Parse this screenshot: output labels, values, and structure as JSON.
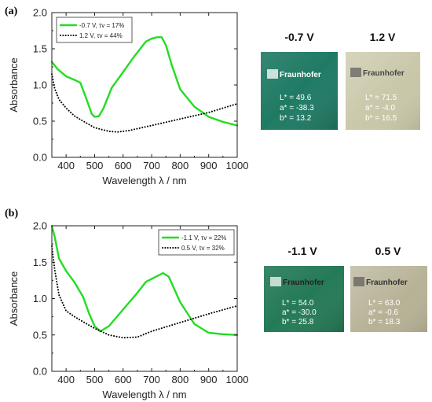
{
  "chart_data": [
    {
      "panel": "(a)",
      "type": "line",
      "xlabel": "Wavelength λ / nm",
      "ylabel": "Absorbance",
      "xlim": [
        350,
        1000
      ],
      "ylim": [
        0,
        2.0
      ],
      "xticks": [
        400,
        500,
        600,
        700,
        800,
        900,
        1000
      ],
      "yticks": [
        0.0,
        0.5,
        1.0,
        1.5,
        2.0
      ],
      "grid": false,
      "legend_position": "top-left",
      "series": [
        {
          "name": "-0.7 V, τv = 17%",
          "color": "#22dd22",
          "style": "solid",
          "x": [
            350,
            370,
            400,
            430,
            450,
            470,
            490,
            500,
            515,
            530,
            560,
            600,
            640,
            680,
            700,
            720,
            735,
            750,
            770,
            800,
            850,
            900,
            950,
            1000
          ],
          "y": [
            1.32,
            1.22,
            1.12,
            1.07,
            1.03,
            0.82,
            0.6,
            0.56,
            0.57,
            0.67,
            0.96,
            1.18,
            1.4,
            1.6,
            1.64,
            1.66,
            1.66,
            1.55,
            1.28,
            0.94,
            0.7,
            0.56,
            0.49,
            0.44
          ]
        },
        {
          "name": "1.2 V, τv = 44%",
          "color": "#000000",
          "style": "dotted",
          "x": [
            350,
            360,
            375,
            400,
            430,
            460,
            500,
            550,
            580,
            620,
            700,
            800,
            900,
            1000
          ],
          "y": [
            1.15,
            0.95,
            0.8,
            0.68,
            0.57,
            0.5,
            0.41,
            0.36,
            0.35,
            0.37,
            0.44,
            0.53,
            0.62,
            0.74
          ]
        }
      ]
    },
    {
      "panel": "(b)",
      "type": "line",
      "xlabel": "Wavelength λ / nm",
      "ylabel": "Absorbance",
      "xlim": [
        350,
        1000
      ],
      "ylim": [
        0,
        2.0
      ],
      "xticks": [
        400,
        500,
        600,
        700,
        800,
        900,
        1000
      ],
      "yticks": [
        0.0,
        0.5,
        1.0,
        1.5,
        2.0
      ],
      "grid": false,
      "legend_position": "top-right",
      "series": [
        {
          "name": "-1.1 V, τv = 22%",
          "color": "#22dd22",
          "style": "solid",
          "x": [
            350,
            360,
            375,
            400,
            430,
            460,
            480,
            500,
            520,
            550,
            600,
            650,
            680,
            710,
            740,
            760,
            800,
            850,
            900,
            950,
            1000
          ],
          "y": [
            2.0,
            1.85,
            1.55,
            1.38,
            1.22,
            1.02,
            0.8,
            0.62,
            0.55,
            0.62,
            0.85,
            1.08,
            1.23,
            1.29,
            1.35,
            1.3,
            0.95,
            0.65,
            0.53,
            0.51,
            0.5
          ]
        },
        {
          "name": "0.5 V, τv = 32%",
          "color": "#000000",
          "style": "dotted",
          "x": [
            350,
            360,
            375,
            400,
            430,
            460,
            500,
            550,
            600,
            650,
            700,
            800,
            900,
            1000
          ],
          "y": [
            1.72,
            1.4,
            1.05,
            0.83,
            0.75,
            0.68,
            0.59,
            0.5,
            0.46,
            0.47,
            0.55,
            0.67,
            0.79,
            0.9
          ]
        }
      ]
    }
  ],
  "figure": {
    "panel_a_label": "(a)",
    "panel_b_label": "(b)",
    "axis_ticks_x": [
      "400",
      "500",
      "600",
      "700",
      "800",
      "900",
      "1000"
    ],
    "axis_ticks_y": [
      "0.0",
      "0.5",
      "1.0",
      "1.5",
      "2.0"
    ],
    "xlabel": "Wavelength λ / nm",
    "ylabel": "Absorbance"
  },
  "samples": [
    {
      "title": "-0.7 V",
      "L": "L* = 49.6",
      "a": "a* = -38.3",
      "b": "b* = 13.2",
      "color": "#1f7a64",
      "brand": "Fraunhofer",
      "brand_color": "#ffffff"
    },
    {
      "title": "1.2 V",
      "L": "L* = 71.5",
      "a": "a* = -4.0",
      "b": "b* = 16.5",
      "color": "#c9c7a8",
      "brand": "Fraunhofer",
      "brand_color": "#444444"
    },
    {
      "title": "-1.1 V",
      "L": "L* = 54.0",
      "a": "a* = -30.0",
      "b": "b* = 25.8",
      "color": "#247a57",
      "brand": "Fraunhofer",
      "brand_color": "#222222"
    },
    {
      "title": "0.5 V",
      "L": "L* = 63.0",
      "a": "a* = -0.6",
      "b": "b* = 18.3",
      "color": "#b7b296",
      "brand": "Fraunhofer",
      "brand_color": "#333333"
    }
  ]
}
